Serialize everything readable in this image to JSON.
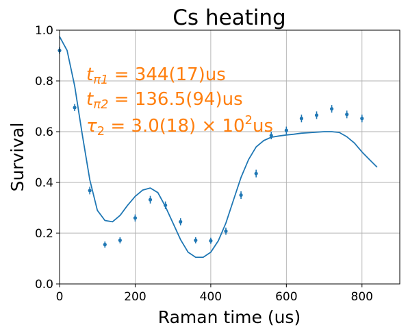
{
  "chart_data": {
    "type": "scatter",
    "title": "Cs heating",
    "xlabel": "Raman time (us)",
    "ylabel": "Survival",
    "xlim": [
      0,
      900
    ],
    "ylim": [
      0,
      1
    ],
    "xticks": [
      0,
      200,
      400,
      600,
      800
    ],
    "xtick_labels": [
      "0",
      "200",
      "400",
      "600",
      "800"
    ],
    "yticks": [
      0,
      0.2,
      0.4,
      0.6,
      0.8,
      1.0
    ],
    "ytick_labels": [
      "0.0",
      "0.2",
      "0.4",
      "0.6",
      "0.8",
      "1.0"
    ],
    "grid": true,
    "colors": {
      "data": "#1f77b4",
      "fit": "#1f77b4",
      "annotation": "#ff7f0e"
    },
    "annotations": {
      "line1": {
        "symbol": "t",
        "sub": "π1",
        "value": " = 344(17)us"
      },
      "line2": {
        "symbol": "t",
        "sub": "π2",
        "value": " = 136.5(94)us"
      },
      "line3": {
        "symbol": "τ",
        "sub": "2",
        "value": " = 3.0(18) × 10",
        "sup": "2",
        "unit": "us"
      }
    },
    "series": [
      {
        "kind": "errorbar",
        "x": [
          0,
          40,
          80,
          120,
          160,
          200,
          240,
          280,
          320,
          360,
          400,
          440,
          480,
          520,
          560,
          600,
          640,
          680,
          720,
          760,
          800
        ],
        "y": [
          0.92,
          0.695,
          0.368,
          0.155,
          0.172,
          0.26,
          0.332,
          0.31,
          0.245,
          0.172,
          0.17,
          0.208,
          0.35,
          0.435,
          0.585,
          0.605,
          0.652,
          0.665,
          0.69,
          0.668,
          0.652
        ],
        "yerr": [
          0.013,
          0.014,
          0.015,
          0.012,
          0.012,
          0.014,
          0.015,
          0.015,
          0.014,
          0.012,
          0.012,
          0.014,
          0.015,
          0.015,
          0.015,
          0.015,
          0.015,
          0.015,
          0.015,
          0.015,
          0.015
        ]
      },
      {
        "kind": "fit-line",
        "x": [
          0,
          20,
          40,
          60,
          80,
          100,
          120,
          140,
          160,
          180,
          200,
          220,
          240,
          260,
          280,
          300,
          320,
          340,
          360,
          380,
          400,
          420,
          440,
          460,
          480,
          500,
          520,
          540,
          560,
          580,
          600,
          620,
          640,
          660,
          680,
          700,
          720,
          740,
          760,
          780,
          800,
          820,
          840
        ],
        "y": [
          0.975,
          0.92,
          0.78,
          0.59,
          0.41,
          0.29,
          0.25,
          0.245,
          0.27,
          0.31,
          0.345,
          0.37,
          0.378,
          0.36,
          0.305,
          0.24,
          0.175,
          0.125,
          0.105,
          0.105,
          0.125,
          0.17,
          0.24,
          0.33,
          0.42,
          0.49,
          0.54,
          0.565,
          0.578,
          0.583,
          0.587,
          0.59,
          0.594,
          0.596,
          0.598,
          0.6,
          0.6,
          0.597,
          0.58,
          0.555,
          0.52,
          0.49,
          0.46
        ]
      }
    ]
  }
}
